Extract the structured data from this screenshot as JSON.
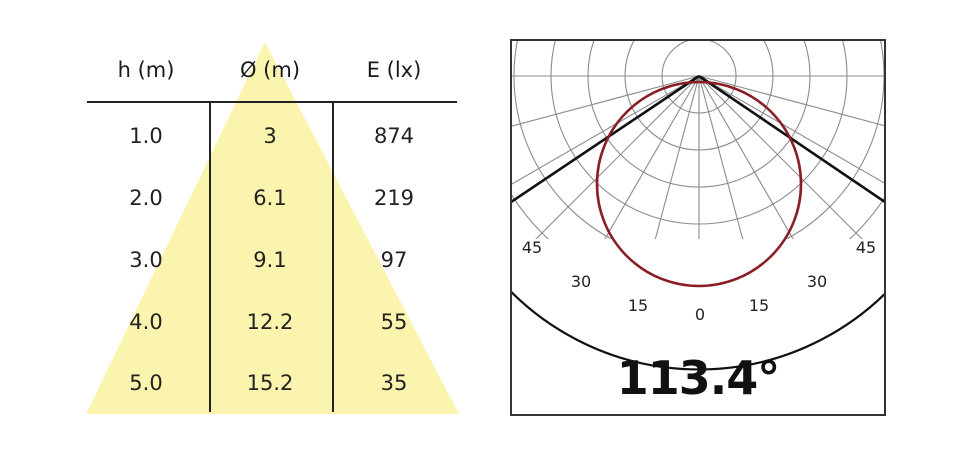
{
  "table": {
    "headers": [
      "h (m)",
      "Ø (m)",
      "E (lx)"
    ],
    "rows": [
      [
        "1.0",
        "3",
        "874"
      ],
      [
        "2.0",
        "6.1",
        "219"
      ],
      [
        "3.0",
        "9.1",
        "97"
      ],
      [
        "4.0",
        "12.2",
        "55"
      ],
      [
        "5.0",
        "15.2",
        "35"
      ]
    ]
  },
  "polar": {
    "angle_labels": {
      "left_45": "45",
      "left_30": "30",
      "left_15": "15",
      "zero": "0",
      "right_15": "15",
      "right_30": "30",
      "right_45": "45"
    },
    "beam_angle": "113.4°"
  },
  "colors": {
    "cone_fill": "#fbf4ae",
    "text": "#222222",
    "grid": "#8c8c8c",
    "distribution_curve": "#8b1e24",
    "beam_lines": "#111111",
    "frame": "#333333"
  }
}
